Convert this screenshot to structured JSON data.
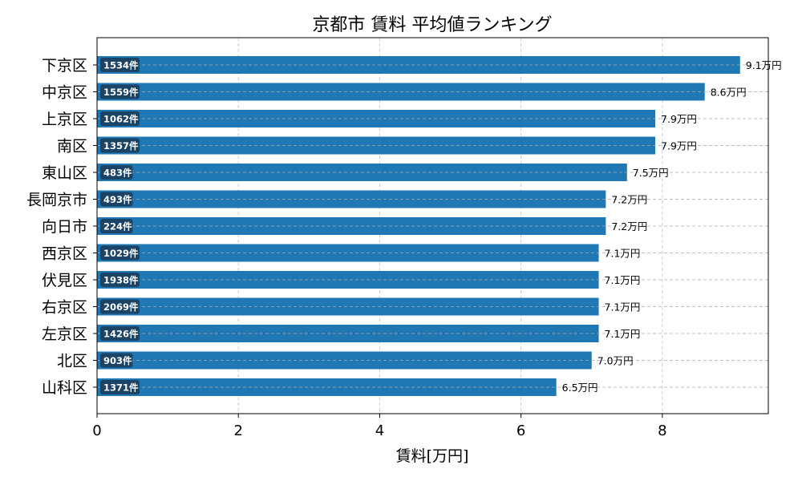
{
  "chart_data": {
    "type": "bar",
    "orientation": "horizontal",
    "title": "京都市 賃料 平均値ランキング",
    "xlabel": "賃料[万円]",
    "ylabel": "",
    "xlim": [
      0,
      9.5
    ],
    "xticks": [
      0,
      2,
      4,
      6,
      8
    ],
    "grid": true,
    "bar_color": "#1f77b4",
    "categories": [
      "下京区",
      "中京区",
      "上京区",
      "南区",
      "東山区",
      "長岡京市",
      "向日市",
      "西京区",
      "伏見区",
      "右京区",
      "左京区",
      "北区",
      "山科区"
    ],
    "values": [
      9.1,
      8.6,
      7.9,
      7.9,
      7.5,
      7.2,
      7.2,
      7.1,
      7.1,
      7.1,
      7.1,
      7.0,
      6.5
    ],
    "value_labels": [
      "9.1万円",
      "8.6万円",
      "7.9万円",
      "7.9万円",
      "7.5万円",
      "7.2万円",
      "7.2万円",
      "7.1万円",
      "7.1万円",
      "7.1万円",
      "7.1万円",
      "7.0万円",
      "6.5万円"
    ],
    "count_labels": [
      "1534件",
      "1559件",
      "1062件",
      "1357件",
      "483件",
      "493件",
      "224件",
      "1029件",
      "1938件",
      "2069件",
      "1426件",
      "903件",
      "1371件"
    ]
  }
}
